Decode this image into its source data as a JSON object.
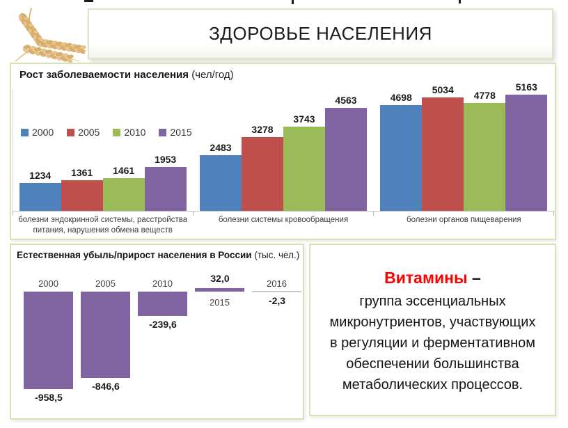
{
  "header": {
    "title": "ЗДОРОВЬЕ НАСЕЛЕНИЯ",
    "logo": "wheat-ears"
  },
  "colors": {
    "series_2000": "#4F81BD",
    "series_2005": "#C0504D",
    "series_2010": "#9BBB59",
    "series_2015": "#8064A2",
    "population_bar": "#8064A2",
    "panel_border": "#d8e2b6",
    "accent_red": "#fe0000",
    "near_zero_line": "#c9c9d3"
  },
  "chart_data": [
    {
      "type": "bar",
      "title_bold": "Рост заболеваемости населения",
      "title_normal": " (чел/год)",
      "legend_position": "left-middle",
      "value_labels": true,
      "grid": false,
      "ylim": [
        0,
        5163
      ],
      "categories": [
        "болезни эндокринной системы, расстройства питания, нарушения обмена веществ",
        "болезни системы кровообращения",
        "болезни органов пищеварения"
      ],
      "series": [
        {
          "name": "2000",
          "color": "#4F81BD",
          "values": [
            1234,
            2483,
            4698
          ]
        },
        {
          "name": "2005",
          "color": "#C0504D",
          "values": [
            1361,
            3278,
            5034
          ]
        },
        {
          "name": "2010",
          "color": "#9BBB59",
          "values": [
            1461,
            3743,
            4778
          ]
        },
        {
          "name": "2015",
          "color": "#8064A2",
          "values": [
            1953,
            4563,
            5163
          ]
        }
      ]
    },
    {
      "type": "bar",
      "title_bold": "Естественная убыль/прирост населения в России",
      "title_normal": " (тыс. чел.)",
      "bar_color": "#8064A2",
      "grid": false,
      "categories": [
        "2000",
        "2005",
        "2010",
        "2015",
        "2016"
      ],
      "values": [
        -958.5,
        -846.6,
        -239.6,
        32.0,
        -2.3
      ],
      "value_labels": [
        "-958,5",
        "-846,6",
        "-239,6",
        "32,0",
        "-2,3"
      ]
    }
  ],
  "note": {
    "heading": "Витамины",
    "dash": " –",
    "body_lines": [
      "группа эссенциальных",
      "микронутриентов, участвующих",
      "в регуляции и ферментативном",
      "обеспечении большинства",
      "метаболических процессов."
    ]
  }
}
